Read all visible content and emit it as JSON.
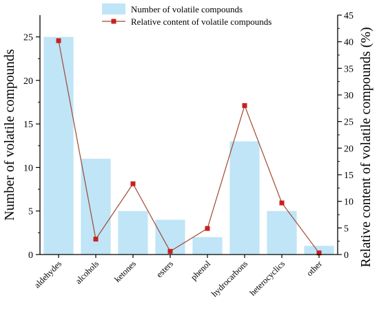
{
  "chart_data": {
    "type": "bar+line",
    "categories": [
      "aldehydes",
      "alcohols",
      "ketones",
      "esters",
      "phenol",
      "hydrocarbons",
      "heterocyclics",
      "other"
    ],
    "series": [
      {
        "name": "Number of volatile compounds",
        "type": "bar",
        "axis": "left",
        "color": "#bfe5f7",
        "values": [
          25,
          11,
          5,
          4,
          2,
          13,
          5,
          1
        ]
      },
      {
        "name": "Relative content of volatile compounds",
        "type": "line",
        "axis": "right",
        "line_color": "#a0472f",
        "marker_color": "#cc1f1f",
        "values": [
          40.2,
          2.9,
          13.3,
          0.6,
          4.9,
          28.0,
          9.7,
          0.3
        ]
      }
    ],
    "ylabel_left": "Number of volatile compounds",
    "ylabel_right": "Relative content of volatile compounds (%)",
    "ylim_left": [
      0,
      27.5
    ],
    "ylim_right": [
      0,
      45
    ],
    "yticks_left": [
      0,
      5,
      10,
      15,
      20,
      25
    ],
    "yticks_right": [
      0,
      5,
      10,
      15,
      20,
      25,
      30,
      35,
      40,
      45
    ],
    "legend_position": "top-center",
    "grid": false
  }
}
